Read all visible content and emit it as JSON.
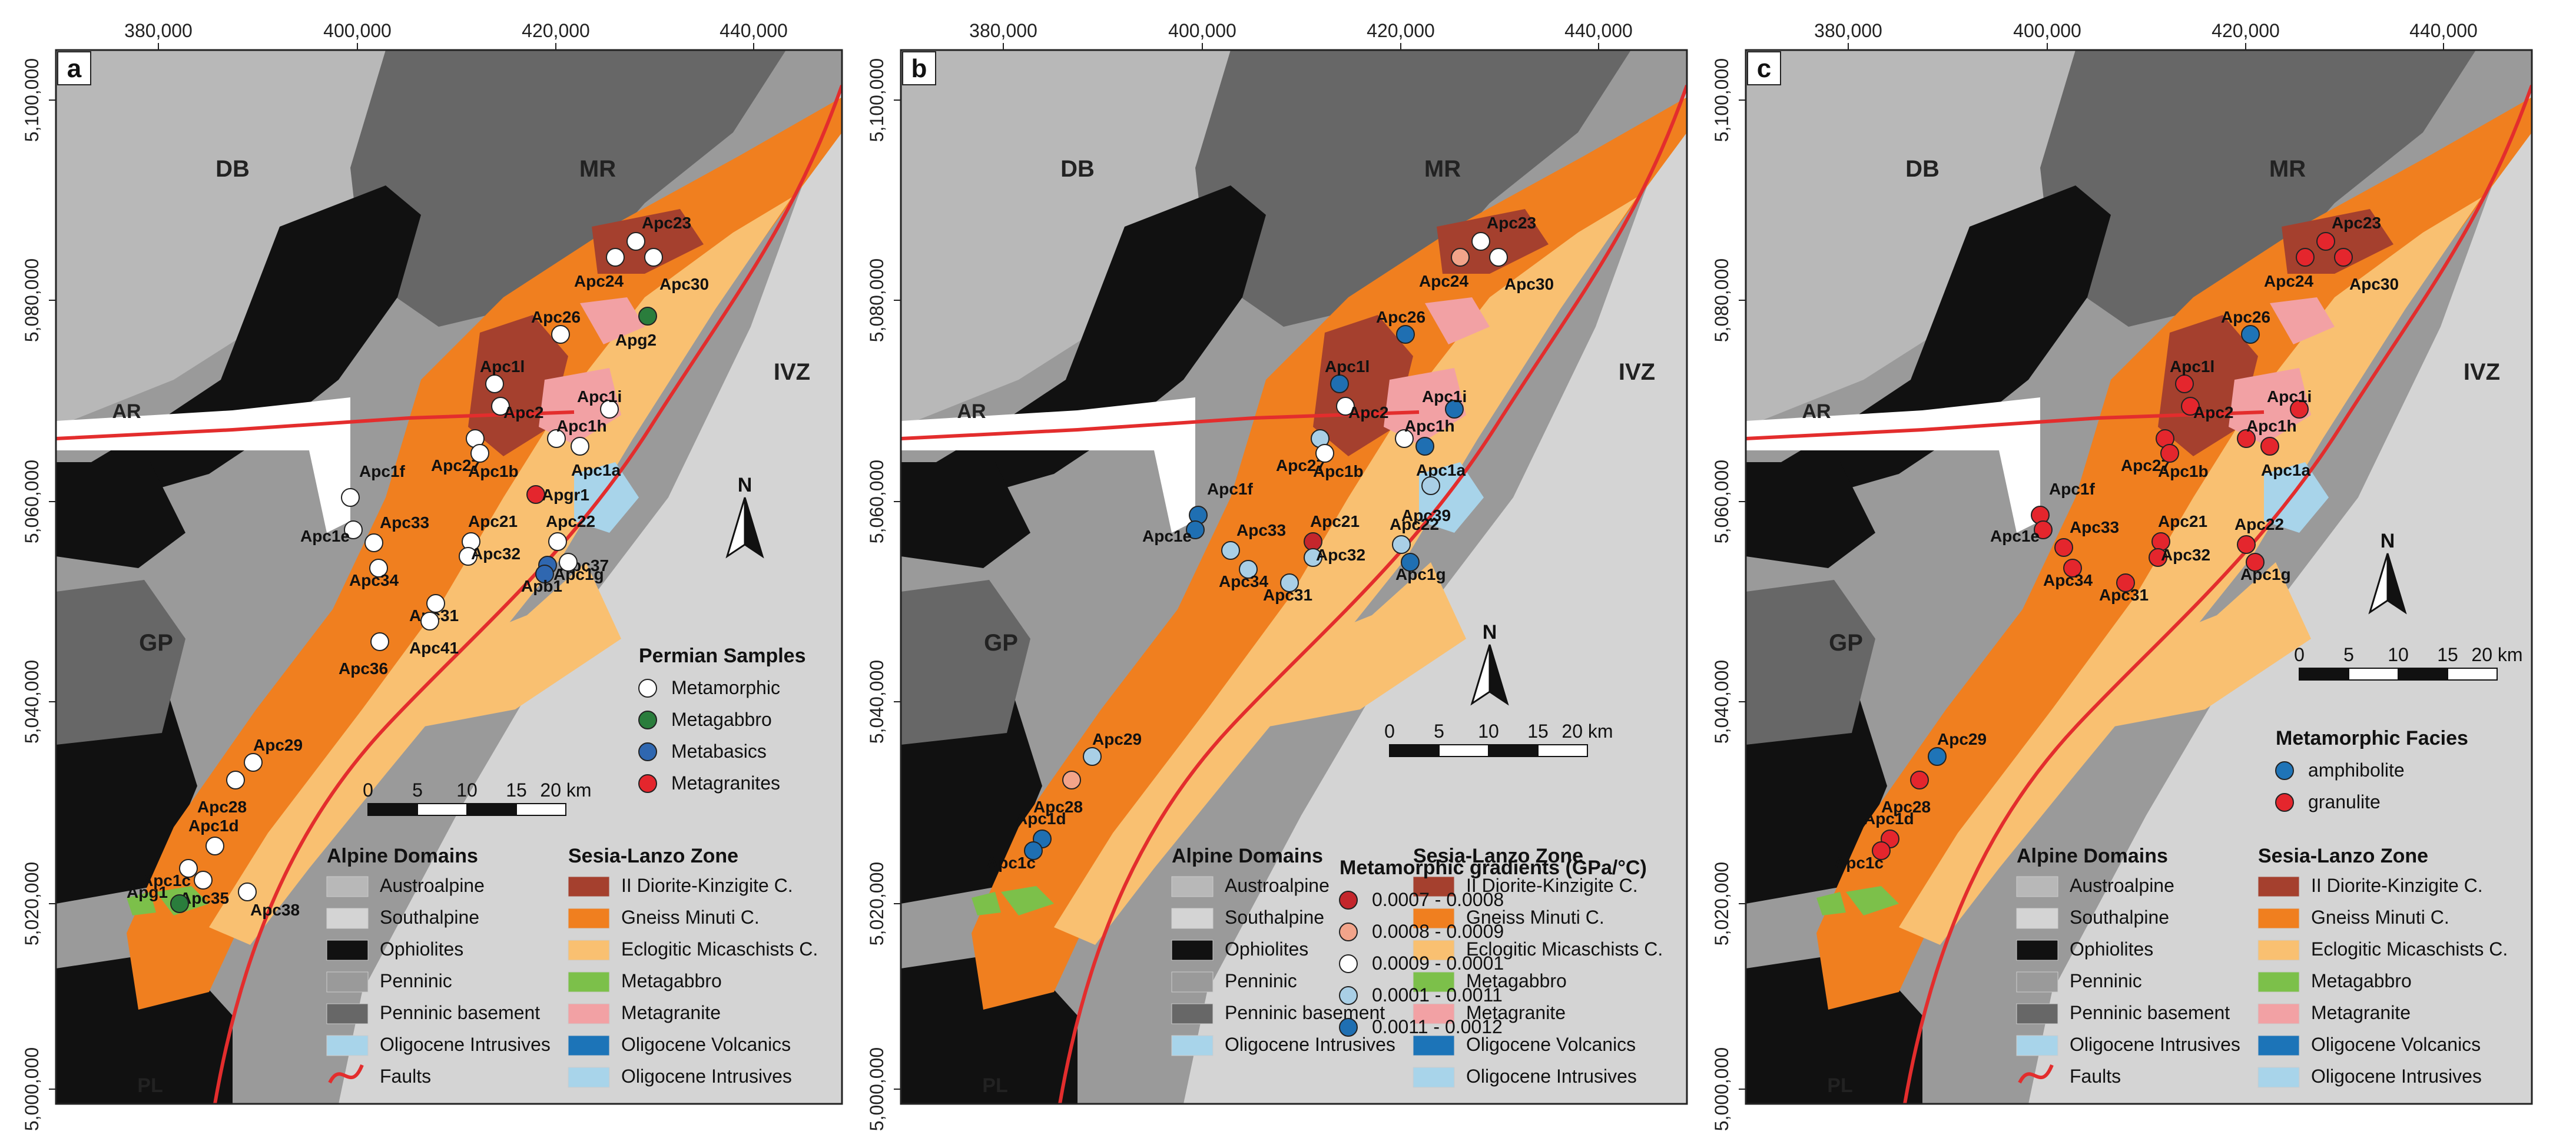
{
  "x_ticks": [
    "380,000",
    "400,000",
    "420,000",
    "440,000"
  ],
  "y_ticks": [
    "5,100,000",
    "5,080,000",
    "5,060,000",
    "5,040,000",
    "5,020,000",
    "5,000,000"
  ],
  "domains": [
    "DB",
    "MR",
    "IVZ",
    "GP",
    "AR",
    "PL"
  ],
  "north": "N",
  "scale": {
    "ticks": [
      "0",
      "5",
      "10",
      "15",
      "20 km"
    ]
  },
  "colors": {
    "ophiolites": "#111111",
    "penninic": "#9a9a9a",
    "penninic_basement": "#676767",
    "austroalpine": "#b8b8b8",
    "southalpine": "#d4d4d4",
    "diorite_kinzigite": "#a5402e",
    "gneiss_minuti": "#f07f1f",
    "eclogitic": "#f9c071",
    "metagabbro": "#7cc04a",
    "metagranite": "#f2a1a4",
    "oligocene_volcanics": "#1c74b8",
    "oligocene_intrusives": "#a8d4ea",
    "faults": "#e32d2d",
    "sample_metamorphic": "#ffffff",
    "sample_metagabbro": "#2a7d3c",
    "sample_metabasics": "#2f67b0",
    "sample_metagranites": "#e4262d",
    "grad_1": "#c4262c",
    "grad_2": "#f2a48a",
    "grad_3": "#ffffff",
    "grad_4": "#a9cfe6",
    "grad_5": "#1f6fb2",
    "facies_amphibolite": "#1f74b7",
    "facies_granulite": "#e4262d"
  },
  "alpine_domains": {
    "title": "Alpine Domains",
    "items": [
      "Austroalpine",
      "Southalpine",
      "Ophiolites",
      "Penninic",
      "Penninic basement",
      "Oligocene Intrusives",
      "Faults"
    ]
  },
  "sesia_lanzo": {
    "title": "Sesia-Lanzo Zone",
    "items_ab": [
      "II Diorite-Kinzigite C.",
      "Gneiss Minuti C.",
      "Eclogitic Micaschists C.",
      "Metagabbro",
      "Metagranite",
      "Oligocene Volcanics",
      "Oligocene Intrusives"
    ],
    "items_c": [
      "II Diorite-Kinzigite C.",
      "Gneiss Minuti C.",
      "Eclogitic Micaschists C.",
      "Metagabbro",
      "Metagranite",
      "Oligocene Volcanics",
      "Oligocene Intrusives"
    ]
  },
  "panels": [
    {
      "letter": "a",
      "legend_title": "Permian Samples",
      "legend_items": [
        "Metamorphic",
        "Metagabbro",
        "Metabasics",
        "Metagranites"
      ],
      "samples": [
        {
          "label": "Apc23",
          "cat": "metamorphic"
        },
        {
          "label": "Apc24",
          "cat": "metamorphic"
        },
        {
          "label": "Apc30",
          "cat": "metamorphic"
        },
        {
          "label": "Apc26",
          "cat": "metamorphic"
        },
        {
          "label": "Apg2",
          "cat": "metagabbro"
        },
        {
          "label": "Apc1l",
          "cat": "metamorphic"
        },
        {
          "label": "Apc2",
          "cat": "metamorphic"
        },
        {
          "label": "Apc1i",
          "cat": "metamorphic"
        },
        {
          "label": "Apc27",
          "cat": "metamorphic"
        },
        {
          "label": "Apc1h",
          "cat": "metamorphic"
        },
        {
          "label": "Apc1b",
          "cat": "metamorphic"
        },
        {
          "label": "Apc1a",
          "cat": "metamorphic"
        },
        {
          "label": "Apgr1",
          "cat": "metagranite"
        },
        {
          "label": "Apc1f",
          "cat": "metamorphic"
        },
        {
          "label": "Apc33",
          "cat": "metamorphic"
        },
        {
          "label": "Apc1e",
          "cat": "metamorphic"
        },
        {
          "label": "Apc21",
          "cat": "metamorphic"
        },
        {
          "label": "Apc32",
          "cat": "metamorphic"
        },
        {
          "label": "Apc22",
          "cat": "metamorphic"
        },
        {
          "label": "Apc37",
          "cat": "metabasic"
        },
        {
          "label": "Apc1g",
          "cat": "metamorphic"
        },
        {
          "label": "Apb1",
          "cat": "metabasic"
        },
        {
          "label": "Apc34",
          "cat": "metamorphic"
        },
        {
          "label": "Apc31",
          "cat": "metamorphic"
        },
        {
          "label": "Apc41",
          "cat": "metamorphic"
        },
        {
          "label": "Apc36",
          "cat": "metamorphic"
        },
        {
          "label": "Apc29",
          "cat": "metamorphic"
        },
        {
          "label": "Apc28",
          "cat": "metamorphic"
        },
        {
          "label": "Apc1d",
          "cat": "metamorphic"
        },
        {
          "label": "Apc1c",
          "cat": "metamorphic"
        },
        {
          "label": "Apc35",
          "cat": "metamorphic"
        },
        {
          "label": "Apg1",
          "cat": "metagabbro"
        },
        {
          "label": "Apc38",
          "cat": "metamorphic"
        }
      ]
    },
    {
      "letter": "b",
      "legend_title": "Metamorphic gradients (GPa/°C)",
      "legend_items": [
        "0.0007 - 0.0008",
        "0.0008 - 0.0009",
        "0.0009 - 0.0001",
        "0.0001 - 0.0011",
        "0.0011 - 0.0012"
      ],
      "samples": [
        {
          "label": "Apc23",
          "cat": "g3"
        },
        {
          "label": "Apc24",
          "cat": "g2"
        },
        {
          "label": "Apc30",
          "cat": "g3"
        },
        {
          "label": "Apc26",
          "cat": "g5"
        },
        {
          "label": "Apc1l",
          "cat": "g5"
        },
        {
          "label": "Apc2",
          "cat": "g3"
        },
        {
          "label": "Apc1i",
          "cat": "g5"
        },
        {
          "label": "Apc27",
          "cat": "g4"
        },
        {
          "label": "Apc1h",
          "cat": "g3"
        },
        {
          "label": "Apc1b",
          "cat": "g3"
        },
        {
          "label": "Apc1a",
          "cat": "g5"
        },
        {
          "label": "Apc39",
          "cat": "g4"
        },
        {
          "label": "Apc1f",
          "cat": "g5"
        },
        {
          "label": "Apc33",
          "cat": "g4"
        },
        {
          "label": "Apc1e",
          "cat": "g5"
        },
        {
          "label": "Apc21",
          "cat": "g1"
        },
        {
          "label": "Apc32",
          "cat": "g4"
        },
        {
          "label": "Apc22",
          "cat": "g4"
        },
        {
          "label": "Apc1g",
          "cat": "g5"
        },
        {
          "label": "Apc34",
          "cat": "g4"
        },
        {
          "label": "Apc31",
          "cat": "g4"
        },
        {
          "label": "Apc29",
          "cat": "g4"
        },
        {
          "label": "Apc28",
          "cat": "g2"
        },
        {
          "label": "Apc1d",
          "cat": "g5"
        },
        {
          "label": "Apc1c",
          "cat": "g5"
        }
      ]
    },
    {
      "letter": "c",
      "legend_title": "Metamorphic Facies",
      "legend_items": [
        "amphibolite",
        "granulite"
      ],
      "samples": [
        {
          "label": "Apc23",
          "cat": "granulite"
        },
        {
          "label": "Apc24",
          "cat": "granulite"
        },
        {
          "label": "Apc30",
          "cat": "granulite"
        },
        {
          "label": "Apc26",
          "cat": "amphibolite"
        },
        {
          "label": "Apc1l",
          "cat": "granulite"
        },
        {
          "label": "Apc2",
          "cat": "granulite"
        },
        {
          "label": "Apc1i",
          "cat": "granulite"
        },
        {
          "label": "Apc27",
          "cat": "granulite"
        },
        {
          "label": "Apc1h",
          "cat": "granulite"
        },
        {
          "label": "Apc1b",
          "cat": "granulite"
        },
        {
          "label": "Apc1a",
          "cat": "granulite"
        },
        {
          "label": "Apc1f",
          "cat": "granulite"
        },
        {
          "label": "Apc33",
          "cat": "granulite"
        },
        {
          "label": "Apc1e",
          "cat": "granulite"
        },
        {
          "label": "Apc21",
          "cat": "granulite"
        },
        {
          "label": "Apc32",
          "cat": "granulite"
        },
        {
          "label": "Apc22",
          "cat": "granulite"
        },
        {
          "label": "Apc1g",
          "cat": "granulite"
        },
        {
          "label": "Apc34",
          "cat": "granulite"
        },
        {
          "label": "Apc31",
          "cat": "granulite"
        },
        {
          "label": "Apc29",
          "cat": "amphibolite"
        },
        {
          "label": "Apc28",
          "cat": "granulite"
        },
        {
          "label": "Apc1d",
          "cat": "granulite"
        },
        {
          "label": "Apc1c",
          "cat": "granulite"
        }
      ]
    }
  ]
}
